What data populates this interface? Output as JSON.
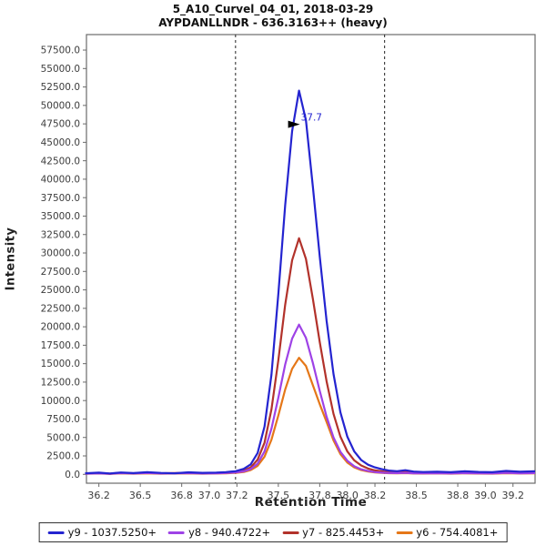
{
  "chart_data": {
    "type": "line",
    "title_line1": "5_A10_Curvel_04_01, 2018-03-29",
    "title_line2": "AYPDANLLNDR - 636.3163++ (heavy)",
    "xlabel": "Retention Time",
    "ylabel": "Intensity",
    "xlim": [
      36.11,
      39.36
    ],
    "ylim": [
      -1200,
      59600
    ],
    "x_ticks": [
      "36.2",
      "36.5",
      "36.8",
      "37.0",
      "37.2",
      "37.5",
      "37.8",
      "38.0",
      "38.2",
      "38.5",
      "38.8",
      "39.0",
      "39.2"
    ],
    "y_ticks": {
      "min": 0,
      "max": 57500,
      "step": 2500,
      "decimals": 1
    },
    "axis_color": "#6b6b6b",
    "tick_label_color": "#3c3c3c",
    "boundary_color": "#222222",
    "peak_boundaries": [
      37.19,
      38.27
    ],
    "annotation": {
      "text": "37.7",
      "x": 37.65,
      "y": 52000,
      "color": "#2424d0",
      "arrow_color": "#000000"
    },
    "legend_position": "bottom",
    "grid": false,
    "series": [
      {
        "id": "y9",
        "label": "y9 - 1037.5250+",
        "color": "#2424d0",
        "points": [
          [
            36.1,
            150
          ],
          [
            36.2,
            230
          ],
          [
            36.28,
            120
          ],
          [
            36.36,
            260
          ],
          [
            36.45,
            170
          ],
          [
            36.55,
            300
          ],
          [
            36.65,
            190
          ],
          [
            36.75,
            150
          ],
          [
            36.85,
            280
          ],
          [
            36.95,
            200
          ],
          [
            37.05,
            240
          ],
          [
            37.12,
            300
          ],
          [
            37.19,
            430
          ],
          [
            37.25,
            750
          ],
          [
            37.3,
            1350
          ],
          [
            37.35,
            2900
          ],
          [
            37.4,
            6500
          ],
          [
            37.45,
            13500
          ],
          [
            37.5,
            24500
          ],
          [
            37.55,
            36500
          ],
          [
            37.6,
            46500
          ],
          [
            37.65,
            52000
          ],
          [
            37.7,
            48000
          ],
          [
            37.75,
            39000
          ],
          [
            37.8,
            29500
          ],
          [
            37.85,
            20800
          ],
          [
            37.9,
            13600
          ],
          [
            37.95,
            8400
          ],
          [
            38.0,
            5100
          ],
          [
            38.05,
            3100
          ],
          [
            38.1,
            1950
          ],
          [
            38.15,
            1300
          ],
          [
            38.2,
            950
          ],
          [
            38.25,
            700
          ],
          [
            38.3,
            520
          ],
          [
            38.36,
            430
          ],
          [
            38.42,
            560
          ],
          [
            38.48,
            380
          ],
          [
            38.55,
            320
          ],
          [
            38.65,
            360
          ],
          [
            38.75,
            290
          ],
          [
            38.85,
            420
          ],
          [
            38.95,
            330
          ],
          [
            39.05,
            290
          ],
          [
            39.15,
            470
          ],
          [
            39.25,
            360
          ],
          [
            39.36,
            420
          ]
        ]
      },
      {
        "id": "y8",
        "label": "y8 - 940.4722+",
        "color": "#9e42e6",
        "points": [
          [
            36.1,
            100
          ],
          [
            36.2,
            150
          ],
          [
            36.28,
            80
          ],
          [
            36.36,
            170
          ],
          [
            36.45,
            115
          ],
          [
            36.55,
            185
          ],
          [
            36.65,
            115
          ],
          [
            36.75,
            140
          ],
          [
            36.85,
            175
          ],
          [
            36.95,
            125
          ],
          [
            37.05,
            150
          ],
          [
            37.12,
            185
          ],
          [
            37.19,
            260
          ],
          [
            37.25,
            400
          ],
          [
            37.3,
            720
          ],
          [
            37.35,
            1450
          ],
          [
            37.4,
            3100
          ],
          [
            37.45,
            6200
          ],
          [
            37.5,
            10400
          ],
          [
            37.55,
            14900
          ],
          [
            37.6,
            18400
          ],
          [
            37.65,
            20300
          ],
          [
            37.7,
            18500
          ],
          [
            37.75,
            15100
          ],
          [
            37.8,
            11300
          ],
          [
            37.85,
            7800
          ],
          [
            37.9,
            5000
          ],
          [
            37.95,
            3050
          ],
          [
            38.0,
            1850
          ],
          [
            38.05,
            1100
          ],
          [
            38.1,
            690
          ],
          [
            38.15,
            450
          ],
          [
            38.2,
            310
          ],
          [
            38.25,
            230
          ],
          [
            38.3,
            185
          ],
          [
            38.36,
            165
          ],
          [
            38.42,
            205
          ],
          [
            38.48,
            145
          ],
          [
            38.55,
            130
          ],
          [
            38.65,
            155
          ],
          [
            38.75,
            115
          ],
          [
            38.85,
            175
          ],
          [
            38.95,
            130
          ],
          [
            39.05,
            115
          ],
          [
            39.15,
            190
          ],
          [
            39.25,
            140
          ],
          [
            39.36,
            170
          ]
        ]
      },
      {
        "id": "y7",
        "label": "y7 - 825.4453+",
        "color": "#b2322b",
        "points": [
          [
            36.1,
            120
          ],
          [
            36.2,
            180
          ],
          [
            36.28,
            90
          ],
          [
            36.36,
            210
          ],
          [
            36.45,
            140
          ],
          [
            36.55,
            230
          ],
          [
            36.65,
            140
          ],
          [
            36.75,
            170
          ],
          [
            36.85,
            210
          ],
          [
            36.95,
            150
          ],
          [
            37.05,
            180
          ],
          [
            37.12,
            230
          ],
          [
            37.19,
            320
          ],
          [
            37.25,
            520
          ],
          [
            37.3,
            950
          ],
          [
            37.35,
            2000
          ],
          [
            37.4,
            4300
          ],
          [
            37.45,
            8800
          ],
          [
            37.5,
            15500
          ],
          [
            37.55,
            23000
          ],
          [
            37.6,
            29000
          ],
          [
            37.65,
            32000
          ],
          [
            37.7,
            29200
          ],
          [
            37.75,
            23800
          ],
          [
            37.8,
            17900
          ],
          [
            37.85,
            12600
          ],
          [
            37.9,
            8200
          ],
          [
            37.95,
            5100
          ],
          [
            38.0,
            3100
          ],
          [
            38.05,
            1900
          ],
          [
            38.1,
            1200
          ],
          [
            38.15,
            780
          ],
          [
            38.2,
            540
          ],
          [
            38.25,
            400
          ],
          [
            38.3,
            310
          ],
          [
            38.36,
            270
          ],
          [
            38.42,
            330
          ],
          [
            38.48,
            240
          ],
          [
            38.55,
            210
          ],
          [
            38.65,
            250
          ],
          [
            38.75,
            190
          ],
          [
            38.85,
            280
          ],
          [
            38.95,
            210
          ],
          [
            39.05,
            190
          ],
          [
            39.15,
            300
          ],
          [
            39.25,
            230
          ],
          [
            39.36,
            270
          ]
        ]
      },
      {
        "id": "y6",
        "label": "y6 - 754.4081+",
        "color": "#e57718",
        "points": [
          [
            36.1,
            80
          ],
          [
            36.2,
            125
          ],
          [
            36.28,
            60
          ],
          [
            36.36,
            140
          ],
          [
            36.45,
            95
          ],
          [
            36.55,
            150
          ],
          [
            36.65,
            95
          ],
          [
            36.75,
            115
          ],
          [
            36.85,
            145
          ],
          [
            36.95,
            100
          ],
          [
            37.05,
            120
          ],
          [
            37.12,
            150
          ],
          [
            37.19,
            210
          ],
          [
            37.25,
            320
          ],
          [
            37.3,
            580
          ],
          [
            37.35,
            1150
          ],
          [
            37.4,
            2400
          ],
          [
            37.45,
            4700
          ],
          [
            37.5,
            8000
          ],
          [
            37.55,
            11500
          ],
          [
            37.6,
            14300
          ],
          [
            37.65,
            15800
          ],
          [
            37.7,
            14700
          ],
          [
            37.75,
            12100
          ],
          [
            37.8,
            9500
          ],
          [
            37.85,
            7100
          ],
          [
            37.9,
            4600
          ],
          [
            37.95,
            2750
          ],
          [
            38.0,
            1600
          ],
          [
            38.05,
            950
          ],
          [
            38.1,
            580
          ],
          [
            38.15,
            380
          ],
          [
            38.2,
            265
          ],
          [
            38.25,
            195
          ],
          [
            38.3,
            155
          ],
          [
            38.36,
            140
          ],
          [
            38.42,
            175
          ],
          [
            38.48,
            120
          ],
          [
            38.55,
            105
          ],
          [
            38.65,
            130
          ],
          [
            38.75,
            95
          ],
          [
            38.85,
            145
          ],
          [
            38.95,
            110
          ],
          [
            39.05,
            95
          ],
          [
            39.15,
            160
          ],
          [
            39.25,
            115
          ],
          [
            39.36,
            140
          ]
        ]
      }
    ]
  }
}
